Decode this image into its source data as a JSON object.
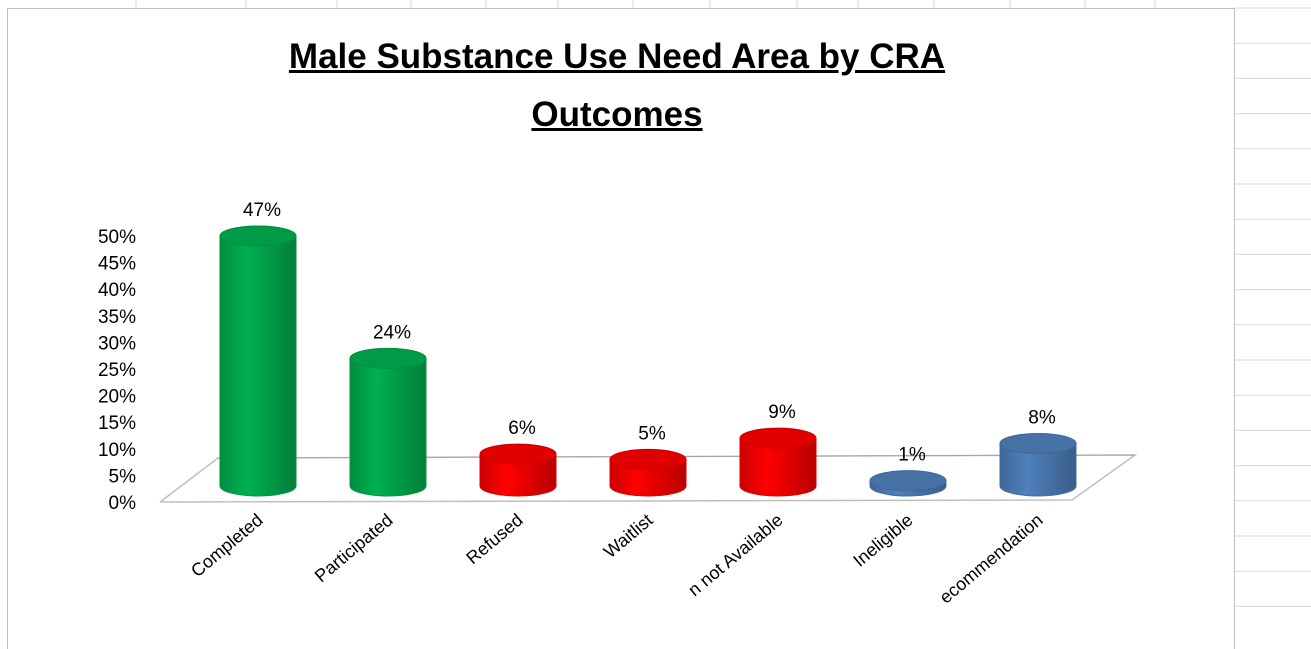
{
  "chart_data": {
    "type": "bar",
    "title_line1": "Male Substance Use Need Area by CRA",
    "title_line2": "Outcomes",
    "categories": [
      "Completed",
      "Participated",
      "Refused",
      "Waitlist",
      "n not Available",
      "Ineligible",
      "ecommendation"
    ],
    "values": [
      47,
      24,
      6,
      5,
      9,
      1,
      8
    ],
    "data_labels": [
      "47%",
      "24%",
      "6%",
      "5%",
      "9%",
      "1%",
      "8%"
    ],
    "colors": [
      "#00b050",
      "#00b050",
      "#ff0000",
      "#ff0000",
      "#ff0000",
      "#4f81bd",
      "#4f81bd"
    ],
    "yticks": [
      "0%",
      "5%",
      "10%",
      "15%",
      "20%",
      "25%",
      "30%",
      "35%",
      "40%",
      "45%",
      "50%"
    ],
    "ylim": [
      0,
      50
    ],
    "grid": false,
    "legend": "none",
    "xlabel": "",
    "ylabel": ""
  }
}
